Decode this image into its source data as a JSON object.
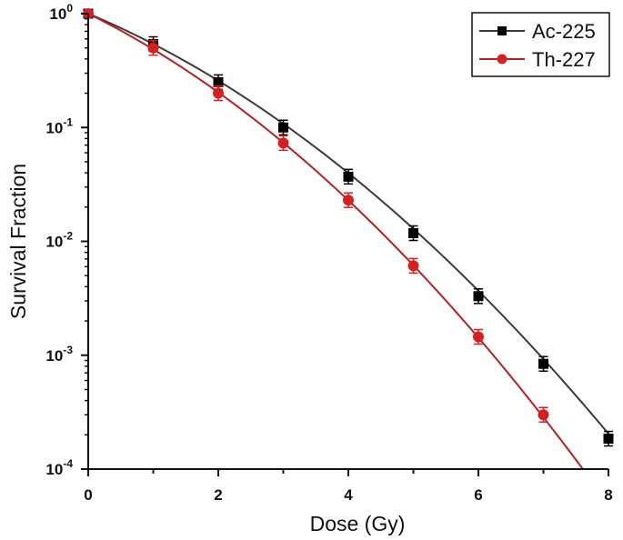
{
  "chart_data": {
    "type": "line",
    "xlabel": "Dose (Gy)",
    "ylabel": "Survival Fraction",
    "xlim": [
      0,
      8
    ],
    "ylim": [
      0.0001,
      1
    ],
    "yscale": "log",
    "x_ticks": [
      "0",
      "2",
      "4",
      "6",
      "8"
    ],
    "y_ticks": [
      {
        "base": "10",
        "exp": "0"
      },
      {
        "base": "10",
        "exp": "-1"
      },
      {
        "base": "10",
        "exp": "-2"
      },
      {
        "base": "10",
        "exp": "-3"
      },
      {
        "base": "10",
        "exp": "-4"
      }
    ],
    "legend_position": "top-right",
    "series": [
      {
        "name": "Ac-225",
        "color": "#3a3a3a",
        "marker": "square",
        "marker_color": "#000000",
        "points": [
          {
            "x": 0,
            "y": 1.0
          },
          {
            "x": 1,
            "y": 0.54
          },
          {
            "x": 2,
            "y": 0.25
          },
          {
            "x": 3,
            "y": 0.1
          },
          {
            "x": 4,
            "y": 0.037
          },
          {
            "x": 5,
            "y": 0.0118
          },
          {
            "x": 6,
            "y": 0.0033
          },
          {
            "x": 7,
            "y": 0.00084
          },
          {
            "x": 8,
            "y": 0.000185
          }
        ],
        "fit_curve": {
          "alpha": 0.55,
          "beta": 0.064
        }
      },
      {
        "name": "Th-227",
        "color": "#b22222",
        "marker": "circle",
        "marker_color": "#d42020",
        "points": [
          {
            "x": 0,
            "y": 1.0
          },
          {
            "x": 1,
            "y": 0.5
          },
          {
            "x": 2,
            "y": 0.2
          },
          {
            "x": 3,
            "y": 0.073
          },
          {
            "x": 4,
            "y": 0.023
          },
          {
            "x": 5,
            "y": 0.0061
          },
          {
            "x": 6,
            "y": 0.00145
          },
          {
            "x": 7,
            "y": 0.0003
          }
        ],
        "fit_curve": {
          "alpha": 0.648,
          "beta": 0.074
        }
      }
    ]
  }
}
